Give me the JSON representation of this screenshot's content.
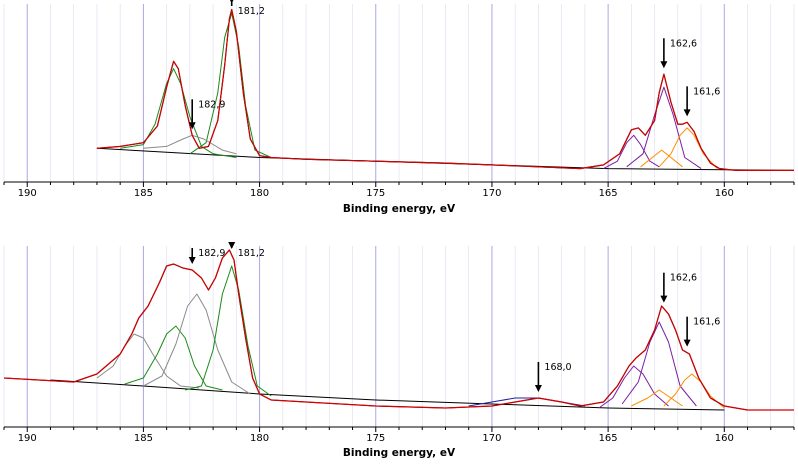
{
  "chart_data": [
    {
      "type": "line",
      "panel": "top",
      "xlabel": "Binding energy, eV",
      "xlim": [
        191,
        157
      ],
      "x_reversed": true,
      "xticks": [
        190,
        185,
        180,
        175,
        170,
        165,
        160
      ],
      "tick_labels": [
        "190",
        "185",
        "180",
        "175",
        "170",
        "165",
        "160"
      ],
      "grid": "vertical",
      "series": [
        {
          "role": "measured",
          "color": "#000000",
          "x": [
            187,
            186,
            185,
            184.4,
            184,
            183.7,
            183.5,
            183.2,
            182.9,
            182.6,
            182.2,
            181.8,
            181.5,
            181.3,
            181.2,
            181.0,
            180.7,
            180.4,
            180.0,
            179.5,
            178,
            175,
            172,
            170,
            168,
            166.2,
            165.2,
            164.5,
            164.0,
            163.7,
            163.4,
            163.0,
            162.8,
            162.6,
            162.3,
            162.0,
            161.8,
            161.6,
            161.3,
            161.0,
            160.6,
            160.2,
            159.5,
            158,
            157
          ],
          "y": [
            0.15,
            0.16,
            0.18,
            0.27,
            0.48,
            0.62,
            0.58,
            0.38,
            0.22,
            0.15,
            0.16,
            0.3,
            0.6,
            0.85,
            0.9,
            0.78,
            0.45,
            0.2,
            0.11,
            0.1,
            0.09,
            0.08,
            0.07,
            0.06,
            0.05,
            0.04,
            0.06,
            0.12,
            0.25,
            0.26,
            0.22,
            0.3,
            0.45,
            0.55,
            0.4,
            0.28,
            0.28,
            0.29,
            0.24,
            0.15,
            0.07,
            0.04,
            0.03,
            0.03,
            0.03
          ]
        },
        {
          "role": "envelope",
          "color": "#d40000",
          "x": [
            187,
            186,
            185,
            184.4,
            184,
            183.7,
            183.5,
            183.2,
            182.9,
            182.6,
            182.2,
            181.8,
            181.5,
            181.3,
            181.2,
            181.0,
            180.7,
            180.4,
            180.0,
            179.5,
            178,
            175,
            172,
            170,
            168,
            166.2,
            165.2,
            164.5,
            164.0,
            163.7,
            163.4,
            163.0,
            162.8,
            162.6,
            162.3,
            162.0,
            161.8,
            161.6,
            161.3,
            161.0,
            160.6,
            160.2,
            159.5,
            158,
            157
          ],
          "y": [
            0.15,
            0.16,
            0.18,
            0.27,
            0.48,
            0.62,
            0.58,
            0.38,
            0.22,
            0.15,
            0.16,
            0.3,
            0.6,
            0.85,
            0.9,
            0.78,
            0.45,
            0.2,
            0.11,
            0.1,
            0.09,
            0.08,
            0.07,
            0.06,
            0.05,
            0.04,
            0.06,
            0.12,
            0.25,
            0.26,
            0.22,
            0.3,
            0.45,
            0.55,
            0.4,
            0.28,
            0.28,
            0.29,
            0.24,
            0.15,
            0.07,
            0.04,
            0.03,
            0.03,
            0.03
          ]
        },
        {
          "role": "background",
          "color": "#000000",
          "x": [
            187,
            180,
            175,
            170,
            165,
            157
          ],
          "y": [
            0.15,
            0.1,
            0.08,
            0.06,
            0.04,
            0.03
          ]
        },
        {
          "role": "component",
          "color": "#1a8a1a",
          "x": [
            186,
            185,
            184.5,
            184,
            183.7,
            183.4,
            183,
            182.5,
            182,
            181
          ],
          "y": [
            0.15,
            0.17,
            0.28,
            0.5,
            0.58,
            0.5,
            0.32,
            0.16,
            0.12,
            0.1
          ]
        },
        {
          "role": "component",
          "color": "#1a8a1a",
          "x": [
            183,
            182.3,
            181.8,
            181.5,
            181.2,
            180.9,
            180.6,
            180.2,
            179.5
          ],
          "y": [
            0.12,
            0.18,
            0.45,
            0.75,
            0.88,
            0.7,
            0.38,
            0.14,
            0.1
          ]
        },
        {
          "role": "component",
          "color": "#8a8a8a",
          "x": [
            185,
            184,
            183.3,
            182.9,
            182.4,
            181.6,
            181
          ],
          "y": [
            0.15,
            0.16,
            0.2,
            0.22,
            0.2,
            0.14,
            0.12
          ]
        },
        {
          "role": "component",
          "color": "#7a1fa2",
          "x": [
            165.2,
            164.6,
            164.2,
            163.9,
            163.6,
            163.2,
            162.8
          ],
          "y": [
            0.04,
            0.08,
            0.18,
            0.22,
            0.17,
            0.08,
            0.05
          ]
        },
        {
          "role": "component",
          "color": "#7a1fa2",
          "x": [
            164.2,
            163.5,
            163.0,
            162.6,
            162.2,
            161.7,
            161.0
          ],
          "y": [
            0.05,
            0.12,
            0.33,
            0.48,
            0.33,
            0.1,
            0.04
          ]
        },
        {
          "role": "component",
          "color": "#ff8c00",
          "x": [
            163.6,
            163.1,
            162.7,
            162.3,
            161.8
          ],
          "y": [
            0.05,
            0.1,
            0.14,
            0.1,
            0.05
          ]
        },
        {
          "role": "component",
          "color": "#ff8c00",
          "x": [
            162.8,
            162.3,
            161.9,
            161.6,
            161.3,
            160.9,
            160.3
          ],
          "y": [
            0.05,
            0.12,
            0.22,
            0.26,
            0.22,
            0.12,
            0.04
          ]
        }
      ],
      "annotations": [
        {
          "text": "181,2",
          "x": 181.2
        },
        {
          "text": "182,9",
          "x": 182.9
        },
        {
          "text": "162,6",
          "x": 162.6
        },
        {
          "text": "161,6",
          "x": 161.6
        }
      ]
    },
    {
      "type": "line",
      "panel": "bottom",
      "xlabel": "Binding energy, eV",
      "xlim": [
        191,
        157
      ],
      "x_reversed": true,
      "xticks": [
        190,
        185,
        180,
        175,
        170,
        165,
        160
      ],
      "tick_labels": [
        "190",
        "185",
        "180",
        "175",
        "170",
        "165",
        "160"
      ],
      "grid": "vertical",
      "series": [
        {
          "role": "measured",
          "color": "#000000",
          "x": [
            191,
            188,
            187,
            186,
            185.5,
            185.2,
            184.8,
            184.3,
            184,
            183.7,
            183.3,
            182.9,
            182.5,
            182.2,
            181.9,
            181.6,
            181.3,
            181.1,
            180.9,
            180.6,
            180.3,
            180,
            179.5,
            178,
            175,
            172,
            170,
            169,
            168,
            167,
            166.2,
            165.2,
            164.6,
            164.1,
            163.8,
            163.4,
            163.0,
            162.7,
            162.4,
            162.1,
            161.8,
            161.5,
            161.1,
            160.6,
            160.0,
            159,
            157
          ],
          "y": [
            0.16,
            0.14,
            0.18,
            0.28,
            0.38,
            0.46,
            0.52,
            0.64,
            0.72,
            0.73,
            0.71,
            0.7,
            0.66,
            0.6,
            0.66,
            0.76,
            0.8,
            0.75,
            0.58,
            0.36,
            0.16,
            0.08,
            0.05,
            0.04,
            0.02,
            0.01,
            0.02,
            0.04,
            0.06,
            0.04,
            0.02,
            0.04,
            0.12,
            0.22,
            0.26,
            0.3,
            0.4,
            0.52,
            0.48,
            0.4,
            0.3,
            0.28,
            0.16,
            0.06,
            0.02,
            0.0,
            0.0
          ]
        },
        {
          "role": "envelope",
          "color": "#d40000",
          "x": [
            191,
            188,
            187,
            186,
            185.5,
            185.2,
            184.8,
            184.3,
            184,
            183.7,
            183.3,
            182.9,
            182.5,
            182.2,
            181.9,
            181.6,
            181.3,
            181.1,
            180.9,
            180.6,
            180.3,
            180,
            179.5,
            178,
            175,
            172,
            170,
            169,
            168,
            167,
            166.2,
            165.2,
            164.6,
            164.1,
            163.8,
            163.4,
            163.0,
            162.7,
            162.4,
            162.1,
            161.8,
            161.5,
            161.1,
            160.6,
            160.0,
            159,
            157
          ],
          "y": [
            0.16,
            0.14,
            0.18,
            0.28,
            0.38,
            0.46,
            0.52,
            0.64,
            0.72,
            0.73,
            0.71,
            0.7,
            0.66,
            0.6,
            0.66,
            0.76,
            0.8,
            0.75,
            0.58,
            0.36,
            0.16,
            0.08,
            0.05,
            0.04,
            0.02,
            0.01,
            0.02,
            0.04,
            0.06,
            0.04,
            0.02,
            0.04,
            0.12,
            0.22,
            0.26,
            0.3,
            0.4,
            0.52,
            0.48,
            0.4,
            0.3,
            0.28,
            0.16,
            0.06,
            0.02,
            0.0,
            0.0
          ]
        },
        {
          "role": "background",
          "color": "#000000",
          "x": [
            189,
            185,
            180,
            175,
            170,
            165,
            160
          ],
          "y": [
            0.15,
            0.12,
            0.08,
            0.05,
            0.03,
            0.01,
            0.0
          ]
        },
        {
          "role": "component",
          "color": "#8a8a8a",
          "x": [
            187,
            186.3,
            185.8,
            185.4,
            185.0,
            184.6,
            184.0,
            183.4,
            182.6
          ],
          "y": [
            0.16,
            0.22,
            0.32,
            0.38,
            0.36,
            0.28,
            0.17,
            0.12,
            0.11
          ]
        },
        {
          "role": "component",
          "color": "#1a8a1a",
          "x": [
            185.8,
            185.0,
            184.4,
            184.0,
            183.6,
            183.2,
            182.8,
            182.3,
            181.6
          ],
          "y": [
            0.13,
            0.16,
            0.28,
            0.38,
            0.42,
            0.36,
            0.22,
            0.12,
            0.1
          ]
        },
        {
          "role": "component",
          "color": "#8a8a8a",
          "x": [
            185.0,
            184.2,
            183.6,
            183.1,
            182.7,
            182.3,
            181.8,
            181.2,
            180.4
          ],
          "y": [
            0.12,
            0.17,
            0.33,
            0.52,
            0.58,
            0.5,
            0.3,
            0.14,
            0.08
          ]
        },
        {
          "role": "component",
          "color": "#1a8a1a",
          "x": [
            183.2,
            182.5,
            182.0,
            181.6,
            181.2,
            180.9,
            180.5,
            180.1,
            179.5
          ],
          "y": [
            0.1,
            0.12,
            0.3,
            0.58,
            0.72,
            0.6,
            0.32,
            0.12,
            0.07
          ]
        },
        {
          "role": "component",
          "color": "#2020a0",
          "x": [
            171,
            170,
            169,
            168,
            167,
            166
          ],
          "y": [
            0.02,
            0.04,
            0.06,
            0.06,
            0.04,
            0.02
          ]
        },
        {
          "role": "component",
          "color": "#7a1fa2",
          "x": [
            165.4,
            164.8,
            164.3,
            163.9,
            163.5,
            163.0,
            162.4
          ],
          "y": [
            0.01,
            0.06,
            0.16,
            0.22,
            0.18,
            0.08,
            0.02
          ]
        },
        {
          "role": "component",
          "color": "#7a1fa2",
          "x": [
            164.4,
            163.7,
            163.2,
            162.8,
            162.4,
            161.9,
            161.2
          ],
          "y": [
            0.03,
            0.14,
            0.34,
            0.44,
            0.34,
            0.12,
            0.02
          ]
        },
        {
          "role": "component",
          "color": "#ff8c00",
          "x": [
            164.0,
            163.3,
            162.8,
            162.3,
            161.8
          ],
          "y": [
            0.02,
            0.06,
            0.1,
            0.06,
            0.02
          ]
        },
        {
          "role": "component",
          "color": "#ff8c00",
          "x": [
            162.6,
            162.1,
            161.7,
            161.4,
            161.0,
            160.6,
            160.0
          ],
          "y": [
            0.02,
            0.08,
            0.15,
            0.18,
            0.14,
            0.07,
            0.01
          ]
        }
      ],
      "annotations": [
        {
          "text": "182,9",
          "x": 182.9
        },
        {
          "text": "181,2",
          "x": 181.2
        },
        {
          "text": "168,0",
          "x": 168.0
        },
        {
          "text": "162,6",
          "x": 162.6
        },
        {
          "text": "161,6",
          "x": 161.6
        }
      ]
    }
  ]
}
